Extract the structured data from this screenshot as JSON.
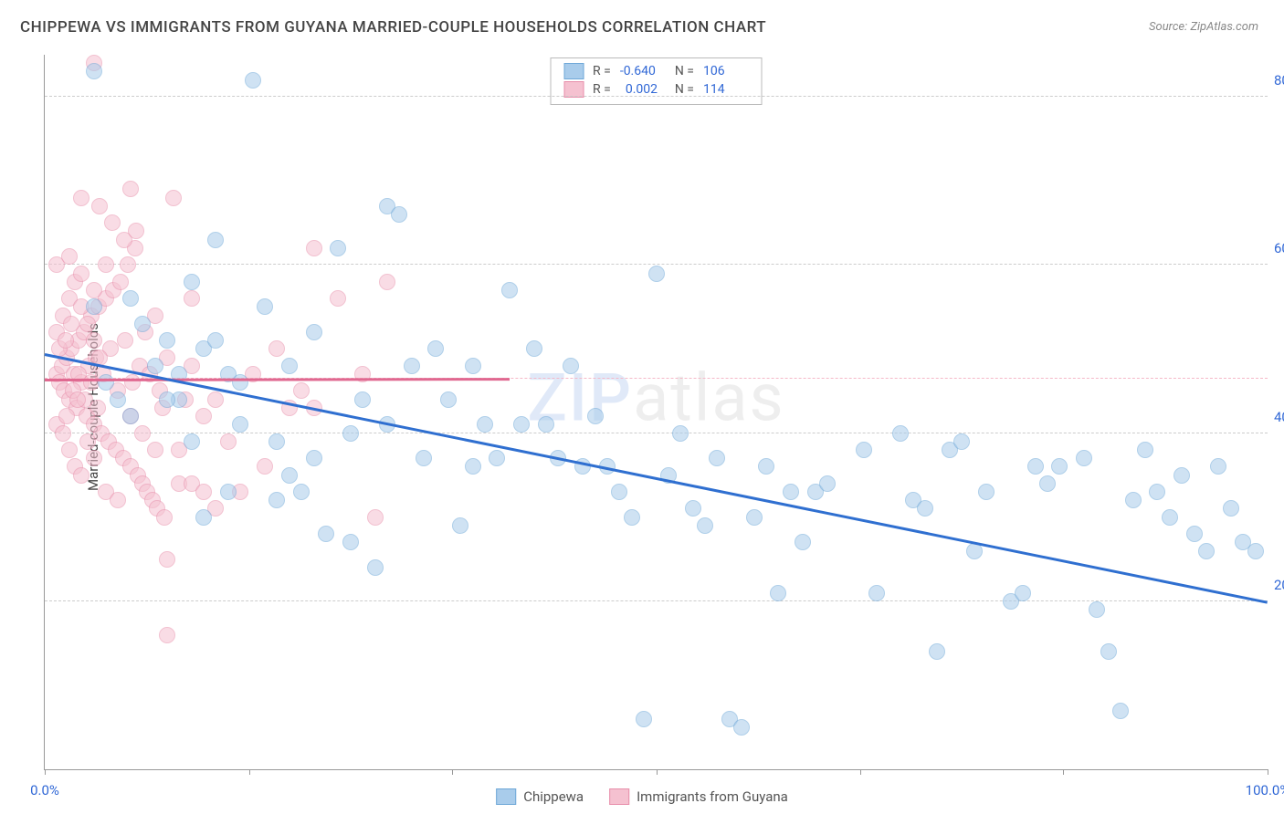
{
  "title": "CHIPPEWA VS IMMIGRANTS FROM GUYANA MARRIED-COUPLE HOUSEHOLDS CORRELATION CHART",
  "source_prefix": "Source: ",
  "source_name": "ZipAtlas.com",
  "y_axis_label": "Married-couple Households",
  "watermark_bold": "ZIP",
  "watermark_rest": "atlas",
  "chart": {
    "type": "scatter",
    "xlim": [
      0,
      100
    ],
    "ylim": [
      0,
      85
    ],
    "x_ticks": [
      0,
      16.7,
      33.3,
      50,
      66.7,
      83.3,
      100
    ],
    "x_tick_labels": {
      "0": "0.0%",
      "100": "100.0%"
    },
    "y_gridlines": [
      20,
      40,
      60,
      80
    ],
    "y_tick_labels": {
      "20": "20.0%",
      "40": "40.0%",
      "60": "60.0%",
      "80": "80.0%"
    },
    "y_tick_color": "#3168d6",
    "x_tick_color": "#3168d6",
    "grid_color": "#cccccc",
    "axis_color": "#999999",
    "background_color": "#ffffff",
    "marker_radius": 9,
    "marker_opacity": 0.55,
    "dashed_ref_y": 46.5,
    "dashed_ref_color": "#f5b8c8",
    "series": [
      {
        "name": "Chippewa",
        "color_fill": "#a9cceb",
        "color_stroke": "#6fa8d8",
        "trend": {
          "x1": 0,
          "y1": 49.5,
          "x2": 100,
          "y2": 20,
          "color": "#2f6fd0",
          "width": 2.5
        },
        "stats": {
          "R": "-0.640",
          "N": "106"
        },
        "points": [
          [
            4,
            83
          ],
          [
            17,
            82
          ],
          [
            14,
            63
          ],
          [
            7,
            56
          ],
          [
            4,
            55
          ],
          [
            8,
            53
          ],
          [
            10,
            51
          ],
          [
            5,
            46
          ],
          [
            6,
            44
          ],
          [
            7,
            42
          ],
          [
            12,
            58
          ],
          [
            13,
            50
          ],
          [
            15,
            47
          ],
          [
            16,
            41
          ],
          [
            18,
            55
          ],
          [
            19,
            39
          ],
          [
            20,
            48
          ],
          [
            21,
            33
          ],
          [
            22,
            52
          ],
          [
            23,
            28
          ],
          [
            24,
            62
          ],
          [
            25,
            40
          ],
          [
            26,
            44
          ],
          [
            27,
            24
          ],
          [
            28,
            67
          ],
          [
            29,
            66
          ],
          [
            30,
            48
          ],
          [
            31,
            37
          ],
          [
            32,
            50
          ],
          [
            33,
            44
          ],
          [
            34,
            29
          ],
          [
            35,
            48
          ],
          [
            36,
            41
          ],
          [
            37,
            37
          ],
          [
            38,
            57
          ],
          [
            39,
            41
          ],
          [
            40,
            50
          ],
          [
            41,
            41
          ],
          [
            42,
            37
          ],
          [
            43,
            48
          ],
          [
            44,
            36
          ],
          [
            45,
            42
          ],
          [
            46,
            36
          ],
          [
            47,
            33
          ],
          [
            48,
            30
          ],
          [
            49,
            6
          ],
          [
            50,
            59
          ],
          [
            51,
            35
          ],
          [
            52,
            40
          ],
          [
            53,
            31
          ],
          [
            54,
            29
          ],
          [
            55,
            37
          ],
          [
            56,
            6
          ],
          [
            57,
            5
          ],
          [
            58,
            30
          ],
          [
            59,
            36
          ],
          [
            60,
            21
          ],
          [
            61,
            33
          ],
          [
            62,
            27
          ],
          [
            63,
            33
          ],
          [
            67,
            38
          ],
          [
            68,
            21
          ],
          [
            70,
            40
          ],
          [
            71,
            32
          ],
          [
            72,
            31
          ],
          [
            73,
            14
          ],
          [
            74,
            38
          ],
          [
            75,
            39
          ],
          [
            76,
            26
          ],
          [
            77,
            33
          ],
          [
            79,
            20
          ],
          [
            80,
            21
          ],
          [
            81,
            36
          ],
          [
            82,
            34
          ],
          [
            83,
            36
          ],
          [
            85,
            37
          ],
          [
            86,
            19
          ],
          [
            87,
            14
          ],
          [
            88,
            7
          ],
          [
            89,
            32
          ],
          [
            90,
            38
          ],
          [
            91,
            33
          ],
          [
            92,
            30
          ],
          [
            93,
            35
          ],
          [
            94,
            28
          ],
          [
            95,
            26
          ],
          [
            96,
            36
          ],
          [
            97,
            31
          ],
          [
            98,
            27
          ],
          [
            99,
            26
          ],
          [
            11,
            44
          ],
          [
            12,
            39
          ],
          [
            13,
            30
          ],
          [
            15,
            33
          ],
          [
            19,
            32
          ],
          [
            20,
            35
          ],
          [
            22,
            37
          ],
          [
            25,
            27
          ],
          [
            28,
            41
          ],
          [
            64,
            34
          ],
          [
            9,
            48
          ],
          [
            10,
            44
          ],
          [
            11,
            47
          ],
          [
            14,
            51
          ],
          [
            16,
            46
          ],
          [
            35,
            36
          ]
        ]
      },
      {
        "name": "Immigrants from Guyana",
        "color_fill": "#f5c1d0",
        "color_stroke": "#e88fab",
        "trend": {
          "x1": 0,
          "y1": 46.5,
          "x2": 38,
          "y2": 46.6,
          "color": "#e06890",
          "width": 2.5
        },
        "stats": {
          "R": "0.002",
          "N": "114"
        },
        "points": [
          [
            1,
            47
          ],
          [
            1.2,
            46
          ],
          [
            1.4,
            48
          ],
          [
            1.6,
            45
          ],
          [
            1.8,
            49
          ],
          [
            2,
            44
          ],
          [
            2.2,
            50
          ],
          [
            2.4,
            47
          ],
          [
            2.6,
            43
          ],
          [
            2.8,
            51
          ],
          [
            3,
            46
          ],
          [
            3.2,
            52
          ],
          [
            3.4,
            42
          ],
          [
            3.6,
            48
          ],
          [
            3.8,
            54
          ],
          [
            4,
            41
          ],
          [
            4.2,
            49
          ],
          [
            4.4,
            55
          ],
          [
            4.6,
            40
          ],
          [
            4.8,
            47
          ],
          [
            5,
            56
          ],
          [
            5.2,
            39
          ],
          [
            5.4,
            50
          ],
          [
            5.6,
            57
          ],
          [
            5.8,
            38
          ],
          [
            6,
            45
          ],
          [
            6.2,
            58
          ],
          [
            6.4,
            37
          ],
          [
            6.6,
            51
          ],
          [
            6.8,
            60
          ],
          [
            7,
            36
          ],
          [
            7.2,
            46
          ],
          [
            7.4,
            62
          ],
          [
            7.6,
            35
          ],
          [
            7.8,
            48
          ],
          [
            8,
            34
          ],
          [
            8.2,
            52
          ],
          [
            8.4,
            33
          ],
          [
            8.6,
            47
          ],
          [
            8.8,
            32
          ],
          [
            9,
            54
          ],
          [
            9.2,
            31
          ],
          [
            9.4,
            45
          ],
          [
            9.6,
            43
          ],
          [
            9.8,
            30
          ],
          [
            10,
            49
          ],
          [
            10.5,
            68
          ],
          [
            11,
            38
          ],
          [
            11.5,
            44
          ],
          [
            12,
            56
          ],
          [
            3,
            68
          ],
          [
            4,
            84
          ],
          [
            5,
            60
          ],
          [
            7,
            69
          ],
          [
            10,
            25
          ],
          [
            12,
            48
          ],
          [
            13,
            42
          ],
          [
            14,
            44
          ],
          [
            15,
            39
          ],
          [
            17,
            47
          ],
          [
            18,
            36
          ],
          [
            19,
            50
          ],
          [
            20,
            43
          ],
          [
            21,
            45
          ],
          [
            22,
            62
          ],
          [
            24,
            56
          ],
          [
            26,
            47
          ],
          [
            27,
            30
          ],
          [
            28,
            58
          ],
          [
            22,
            43
          ],
          [
            1,
            52
          ],
          [
            1.5,
            54
          ],
          [
            2,
            56
          ],
          [
            2.5,
            58
          ],
          [
            3,
            55
          ],
          [
            3.5,
            53
          ],
          [
            4,
            51
          ],
          [
            4.5,
            49
          ],
          [
            1,
            41
          ],
          [
            1.5,
            40
          ],
          [
            2,
            38
          ],
          [
            2.5,
            36
          ],
          [
            3,
            35
          ],
          [
            3.5,
            39
          ],
          [
            4,
            37
          ],
          [
            5,
            33
          ],
          [
            6,
            32
          ],
          [
            7,
            42
          ],
          [
            8,
            40
          ],
          [
            9,
            38
          ],
          [
            1,
            60
          ],
          [
            2,
            61
          ],
          [
            3,
            59
          ],
          [
            4,
            57
          ],
          [
            10,
            16
          ],
          [
            11,
            34
          ],
          [
            12,
            34
          ],
          [
            13,
            33
          ],
          [
            14,
            31
          ],
          [
            16,
            33
          ],
          [
            4.5,
            67
          ],
          [
            5.5,
            65
          ],
          [
            6.5,
            63
          ],
          [
            7.5,
            64
          ],
          [
            1.8,
            42
          ],
          [
            2.3,
            45
          ],
          [
            2.8,
            47
          ],
          [
            3.3,
            44
          ],
          [
            3.8,
            46
          ],
          [
            4.3,
            43
          ],
          [
            1.2,
            50
          ],
          [
            1.7,
            51
          ],
          [
            2.2,
            53
          ],
          [
            2.7,
            44
          ]
        ]
      }
    ]
  },
  "legend": {
    "series1": "Chippewa",
    "series2": "Immigrants from Guyana"
  }
}
